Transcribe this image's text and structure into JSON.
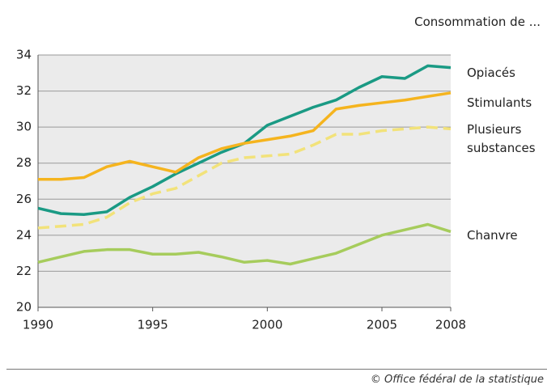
{
  "chart_data": {
    "type": "line",
    "title": "Consommation de ...",
    "x": [
      1990,
      1991,
      1992,
      1993,
      1994,
      1995,
      1996,
      1997,
      1998,
      1999,
      2000,
      2001,
      2002,
      2003,
      2004,
      2005,
      2006,
      2007,
      2008
    ],
    "series": [
      {
        "name": "Opiacés",
        "color": "#1a9a84",
        "dashed": false,
        "values": [
          25.5,
          25.2,
          25.15,
          25.3,
          26.1,
          26.7,
          27.4,
          28.0,
          28.6,
          29.1,
          30.1,
          30.6,
          31.1,
          31.5,
          32.2,
          32.8,
          32.7,
          33.4,
          33.3
        ]
      },
      {
        "name": "Stimulants",
        "color": "#f5b41e",
        "dashed": false,
        "values": [
          27.1,
          27.1,
          27.2,
          27.8,
          28.1,
          27.8,
          27.5,
          28.3,
          28.8,
          29.1,
          29.3,
          29.5,
          29.8,
          31.0,
          31.2,
          31.35,
          31.5,
          31.7,
          31.9
        ]
      },
      {
        "name": "Plusieurs substances",
        "color": "#f2e27a",
        "dashed": true,
        "values": [
          24.4,
          24.5,
          24.6,
          25.0,
          25.8,
          26.3,
          26.6,
          27.3,
          28.0,
          28.3,
          28.4,
          28.5,
          29.0,
          29.6,
          29.6,
          29.8,
          29.9,
          30.0,
          29.9
        ]
      },
      {
        "name": "Chanvre",
        "color": "#a6cc5c",
        "dashed": false,
        "values": [
          22.5,
          22.8,
          23.1,
          23.2,
          23.2,
          22.95,
          22.95,
          23.05,
          22.8,
          22.5,
          22.6,
          22.4,
          22.7,
          23.0,
          23.5,
          24.0,
          24.3,
          24.6,
          24.2
        ]
      }
    ],
    "xlim": [
      1990,
      2008
    ],
    "xticks": [
      1990,
      1995,
      2000,
      2005,
      2008
    ],
    "ylim": [
      20,
      34
    ],
    "yticks": [
      20,
      22,
      24,
      26,
      28,
      30,
      32,
      34
    ],
    "grid": true,
    "source": "© Office fédéral de la statistique"
  }
}
